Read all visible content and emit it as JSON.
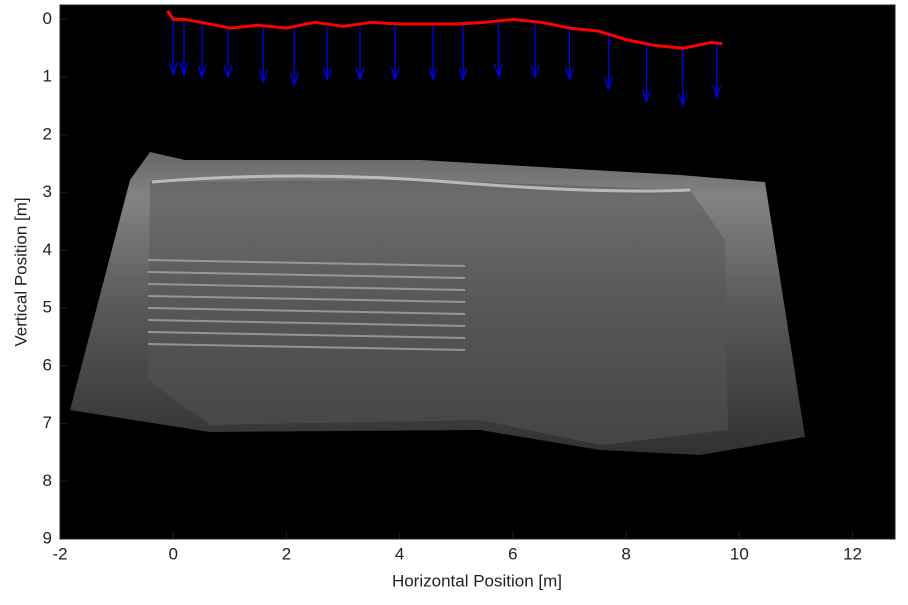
{
  "chart_data": {
    "type": "line",
    "xlabel": "Horizontal Position [m]",
    "ylabel": "Vertical Position [m]",
    "xlim": [
      -2,
      12.75
    ],
    "ylim": [
      -0.25,
      9
    ],
    "y_reversed": true,
    "xticks": [
      -2,
      0,
      2,
      4,
      6,
      8,
      10,
      12
    ],
    "yticks": [
      0,
      1,
      2,
      3,
      4,
      5,
      6,
      7,
      8,
      9
    ],
    "color": "#ff0000",
    "x": [
      -0.1,
      0,
      0.2,
      0.5,
      1,
      1.5,
      2,
      2.5,
      3,
      3.5,
      4,
      4.5,
      5,
      5.5,
      6,
      6.5,
      7,
      7.5,
      8,
      8.5,
      9,
      9.5,
      9.7
    ],
    "y": [
      -0.15,
      0,
      0,
      0.05,
      0.15,
      0.1,
      0.15,
      0.05,
      0.12,
      0.05,
      0.08,
      0.08,
      0.08,
      0.05,
      0,
      0.05,
      0.15,
      0.2,
      0.35,
      0.45,
      0.5,
      0.4,
      0.42
    ],
    "arrows": {
      "color": "#0000ff",
      "x": [
        0,
        0.19,
        0.51,
        0.97,
        1.59,
        2.14,
        2.72,
        3.3,
        3.92,
        4.59,
        5.12,
        5.75,
        6.39,
        7.0,
        7.69,
        8.36,
        9.0,
        9.6
      ],
      "y0": [
        0,
        0,
        0.05,
        0.15,
        0.12,
        0.15,
        0.07,
        0.1,
        0.06,
        0.08,
        0.08,
        0.06,
        0.03,
        0.1,
        0.2,
        0.38,
        0.5,
        0.4
      ],
      "y1": [
        0.95,
        0.95,
        1.0,
        1.0,
        1.08,
        1.13,
        1.04,
        1.04,
        1.04,
        1.04,
        1.04,
        0.99,
        1.0,
        1.04,
        1.21,
        1.42,
        1.49,
        1.35
      ]
    }
  }
}
